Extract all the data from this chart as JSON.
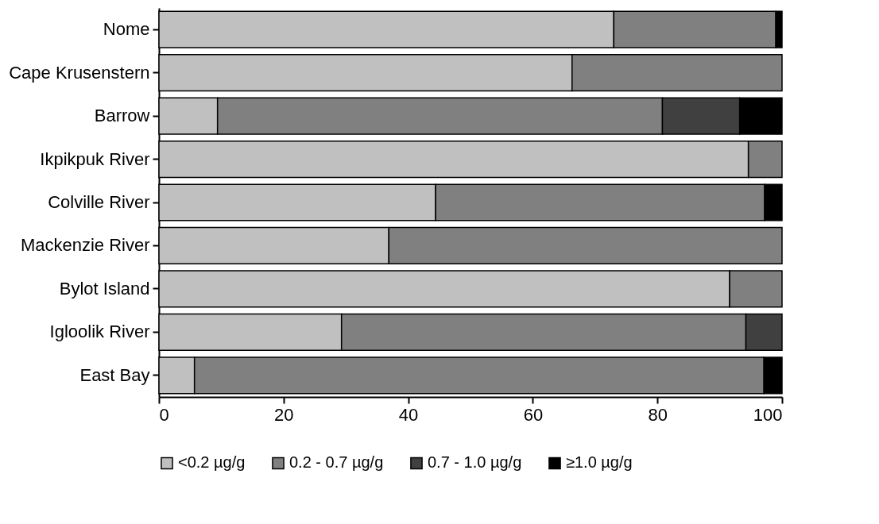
{
  "chart_data": {
    "type": "bar",
    "orientation": "horizontal",
    "stacked": true,
    "categories": [
      "Nome",
      "Cape Krusenstern",
      "Barrow",
      "Ikpikpuk River",
      "Colville River",
      "Mackenzie River",
      "Bylot Island",
      "Igloolik River",
      "East Bay"
    ],
    "series": [
      {
        "name": "<0.2 µg/g",
        "color": "#c0c0c0",
        "values": [
          73,
          66.3,
          9.4,
          94.6,
          44.4,
          36.9,
          91.6,
          29.3,
          5.7
        ]
      },
      {
        "name": "0.2 - 0.7 µg/g",
        "color": "#808080",
        "values": [
          26,
          33.7,
          71.4,
          5.4,
          52.8,
          63.1,
          8.4,
          64.9,
          91.4
        ]
      },
      {
        "name": "0.7 - 1.0 µg/g",
        "color": "#404040",
        "values": [
          null,
          null,
          12.4,
          null,
          null,
          null,
          null,
          5.8,
          null
        ]
      },
      {
        "name": "≥1.0 µg/g",
        "color": "#000000",
        "values": [
          1,
          null,
          6.8,
          null,
          2.8,
          null,
          null,
          null,
          2.9
        ]
      }
    ],
    "xlim": [
      0,
      100
    ],
    "xticks": [
      0,
      20,
      40,
      60,
      80,
      100
    ],
    "grid": false,
    "legend": "bottom"
  }
}
